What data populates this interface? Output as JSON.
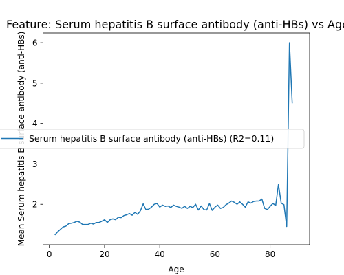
{
  "chart_data": {
    "type": "line",
    "title": "Feature: Serum hepatitis B surface antibody (anti-HBs) vs Age",
    "xlabel": "Age",
    "ylabel": "Mean Serum hepatitis B surface antibody (anti-HBs)",
    "xlim": [
      -2.3,
      94.3
    ],
    "ylim": [
      1.0,
      6.24
    ],
    "x_ticks": [
      0,
      20,
      40,
      60,
      80
    ],
    "y_ticks": [
      2,
      3,
      4,
      5,
      6
    ],
    "grid": false,
    "legend_position": "center-left",
    "series": [
      {
        "name": "Serum hepatitis B surface antibody (anti-HBs) (R2=0.11)",
        "color": "#1f77b4",
        "x": [
          2,
          3,
          4,
          5,
          6,
          7,
          8,
          9,
          10,
          11,
          12,
          13,
          14,
          15,
          16,
          17,
          18,
          19,
          20,
          21,
          22,
          23,
          24,
          25,
          26,
          27,
          28,
          29,
          30,
          31,
          32,
          33,
          34,
          35,
          36,
          37,
          38,
          39,
          40,
          41,
          42,
          43,
          44,
          45,
          46,
          47,
          48,
          49,
          50,
          51,
          52,
          53,
          54,
          55,
          56,
          57,
          58,
          59,
          60,
          61,
          62,
          63,
          64,
          65,
          66,
          67,
          68,
          69,
          70,
          71,
          72,
          73,
          74,
          75,
          76,
          77,
          78,
          79,
          80,
          81,
          82,
          83,
          84,
          85,
          86,
          87,
          88
        ],
        "y": [
          1.24,
          1.32,
          1.38,
          1.44,
          1.46,
          1.52,
          1.53,
          1.55,
          1.58,
          1.56,
          1.5,
          1.5,
          1.5,
          1.53,
          1.51,
          1.55,
          1.55,
          1.58,
          1.62,
          1.55,
          1.62,
          1.64,
          1.62,
          1.68,
          1.67,
          1.72,
          1.74,
          1.77,
          1.73,
          1.8,
          1.75,
          1.84,
          2.01,
          1.87,
          1.88,
          1.93,
          2.0,
          2.02,
          1.93,
          1.98,
          1.95,
          1.96,
          1.92,
          1.98,
          1.95,
          1.93,
          1.9,
          1.95,
          1.9,
          1.95,
          1.92,
          2.0,
          1.86,
          1.96,
          1.87,
          1.86,
          2.02,
          1.85,
          1.93,
          1.98,
          1.9,
          1.92,
          1.99,
          2.03,
          2.08,
          2.05,
          2.0,
          2.06,
          2.0,
          1.93,
          2.06,
          2.03,
          2.07,
          2.08,
          2.08,
          2.13,
          1.9,
          1.87,
          1.95,
          2.02,
          1.97,
          2.49,
          2.03,
          1.99,
          1.45,
          6.0,
          4.5
        ]
      }
    ]
  }
}
